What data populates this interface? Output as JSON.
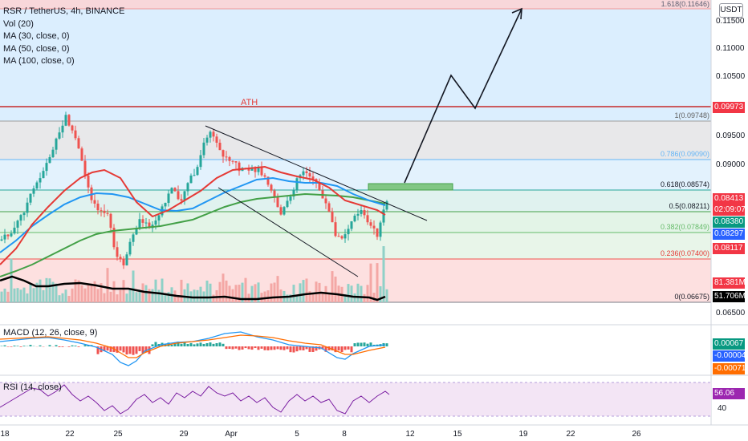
{
  "header": {
    "symbol_line": "RSR / TetherUS, 4h, BINANCE",
    "indicators": [
      "Vol (20)",
      "MA (30, close, 0)",
      "MA (50, close, 0)",
      "MA (100, close, 0)"
    ],
    "currency_button": "USDT"
  },
  "main_chart": {
    "ath_label": "ATH",
    "fib_labels": [
      "1.618(0.11646)",
      "1(0.09748)",
      "0.786(0.09090)",
      "0.618(0.08574)",
      "0.5(0.08211)",
      "0.382(0.07849)",
      "0.236(0.07400)",
      "0(0.06675)"
    ],
    "y_ticks": [
      "0.11500",
      "0.11000",
      "0.10500",
      "0.09500",
      "0.09000",
      "0.06500",
      "0.06500"
    ],
    "price_labels": [
      {
        "text": "0.09973",
        "color": "#f23645"
      },
      {
        "text": "0.08413",
        "color": "#f23645"
      },
      {
        "text": "02:09:07",
        "color": "#f23645"
      },
      {
        "text": "0.08380",
        "color": "#089981"
      },
      {
        "text": "0.08297",
        "color": "#2962ff"
      },
      {
        "text": "0.08117",
        "color": "#f23645"
      },
      {
        "text": "81.381M",
        "color": "#f23645"
      },
      {
        "text": "51.706M",
        "color": "#000000"
      }
    ]
  },
  "macd": {
    "legend": "MACD (12, 26, close, 9)",
    "labels": [
      {
        "text": "0.00067",
        "color": "#089981"
      },
      {
        "text": "-0.00004",
        "color": "#2962ff"
      },
      {
        "text": "-0.00071",
        "color": "#ff6d00"
      }
    ]
  },
  "rsi": {
    "legend": "RSI (14, close)",
    "value_label": {
      "text": "56.06",
      "color": "#9c27b0"
    },
    "tick": "40"
  },
  "x_axis": {
    "ticks": [
      "18",
      "22",
      "25",
      "29",
      "Apr",
      "5",
      "8",
      "12",
      "15",
      "19",
      "22",
      "26"
    ]
  },
  "colors": {
    "up": "#26a69a",
    "down": "#ef5350",
    "ma30": "#e53935",
    "ma50": "#2196f3",
    "ma100": "#43a047",
    "vol_ma": "#000000"
  }
}
